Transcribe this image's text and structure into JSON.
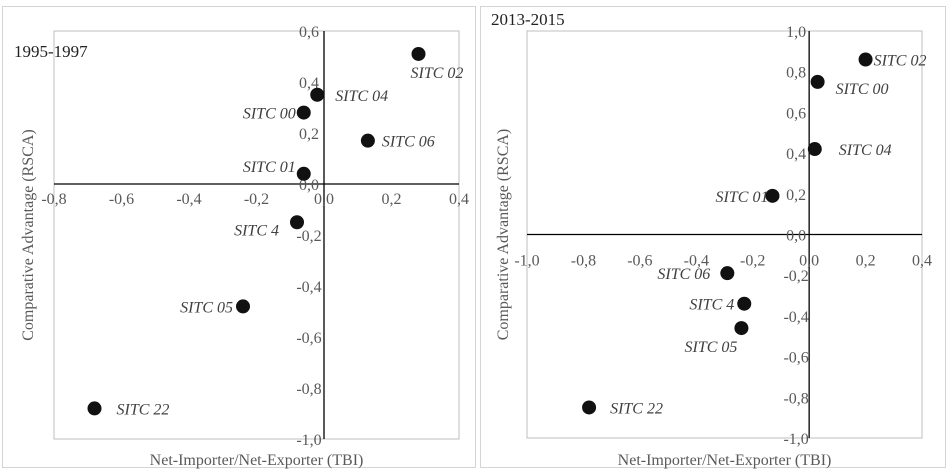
{
  "chart_data": [
    {
      "type": "scatter",
      "title": "1995-1997",
      "xlabel": "Net-Importer/Net-Exporter (TBI)",
      "ylabel": "Comparative Advantage (RSCA)",
      "xlim": [
        -0.8,
        0.4
      ],
      "ylim": [
        -1.0,
        0.6
      ],
      "xticks": [
        "-0,8",
        "-0,6",
        "-0,4",
        "-0,2",
        "0,0",
        "0,2",
        "0,4"
      ],
      "yticks": [
        "-1,0",
        "-0,8",
        "-0,6",
        "-0,4",
        "-0,2",
        "0,0",
        "0,2",
        "0,4",
        "0,6"
      ],
      "points": [
        {
          "label": "SITC 02",
          "x": 0.28,
          "y": 0.51
        },
        {
          "label": "SITC 04",
          "x": -0.02,
          "y": 0.35
        },
        {
          "label": "SITC 00",
          "x": -0.06,
          "y": 0.28
        },
        {
          "label": "SITC 06",
          "x": 0.13,
          "y": 0.17
        },
        {
          "label": "SITC 01",
          "x": -0.06,
          "y": 0.04
        },
        {
          "label": "SITC 4",
          "x": -0.08,
          "y": -0.15
        },
        {
          "label": "SITC 05",
          "x": -0.24,
          "y": -0.48
        },
        {
          "label": "SITC 22",
          "x": -0.68,
          "y": -0.88
        }
      ]
    },
    {
      "type": "scatter",
      "title": "2013-2015",
      "xlabel": "Net-Importer/Net-Exporter (TBI)",
      "ylabel": "Comparative Advantage (RSCA)",
      "xlim": [
        -1.0,
        0.4
      ],
      "ylim": [
        -1.0,
        1.0
      ],
      "xticks": [
        "-1,0",
        "-0,8",
        "-0,6",
        "-0,4",
        "-0,2",
        "0,0",
        "0,2",
        "0,4"
      ],
      "yticks": [
        "-1,0",
        "-0,8",
        "-0,6",
        "-0,4",
        "-0,2",
        "0,0",
        "0,2",
        "0,4",
        "0,6",
        "0,8",
        "1,0"
      ],
      "points": [
        {
          "label": "SITC 02",
          "x": 0.2,
          "y": 0.86
        },
        {
          "label": "SITC 00",
          "x": 0.03,
          "y": 0.75
        },
        {
          "label": "SITC 04",
          "x": 0.02,
          "y": 0.42
        },
        {
          "label": "SITC 01",
          "x": -0.13,
          "y": 0.19
        },
        {
          "label": "SITC 06",
          "x": -0.29,
          "y": -0.19
        },
        {
          "label": "SITC 4",
          "x": -0.23,
          "y": -0.34
        },
        {
          "label": "SITC 05",
          "x": -0.24,
          "y": -0.46
        },
        {
          "label": "SITC 22",
          "x": -0.78,
          "y": -0.85
        }
      ]
    }
  ]
}
